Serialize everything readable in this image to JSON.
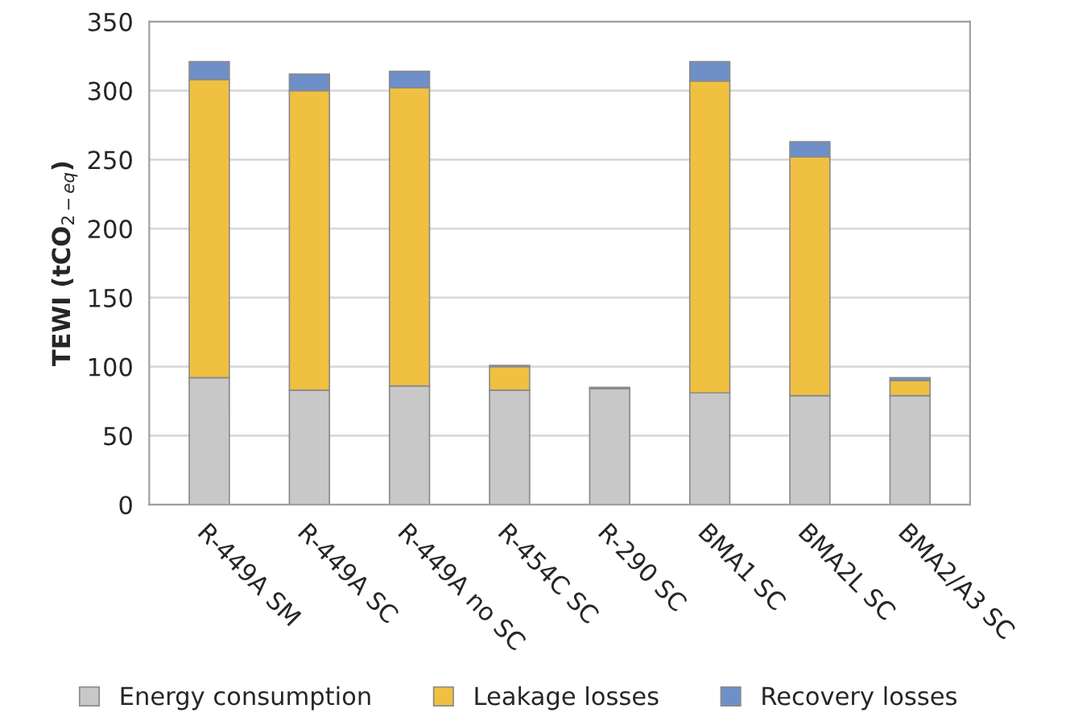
{
  "chart_data": {
    "type": "bar",
    "stacked": true,
    "ylabel": "TEWI (tCO$_{2−eq}$)",
    "categories": [
      "R-449A SM",
      "R-449A SC",
      "R-449A no SC",
      "R-454C SC",
      "R-290 SC",
      "BMA1 SC",
      "BMA2L SC",
      "BMA2/A3 SC"
    ],
    "series": [
      {
        "name": "Energy consumption",
        "color": "#c8c8c8",
        "values": [
          92,
          83,
          86,
          83,
          84,
          81,
          79,
          79
        ]
      },
      {
        "name": "Leakage losses",
        "color": "#f0c040",
        "values": [
          216,
          217,
          216,
          17,
          0,
          226,
          173,
          11
        ]
      },
      {
        "name": "Recovery losses",
        "color": "#6f8fc8",
        "values": [
          13,
          12,
          12,
          1,
          1,
          14,
          11,
          2
        ]
      }
    ],
    "ylim": [
      0,
      350
    ],
    "yticks": [
      0,
      50,
      100,
      150,
      200,
      250,
      300,
      350
    ],
    "grid": "y",
    "legend": "bottom"
  }
}
